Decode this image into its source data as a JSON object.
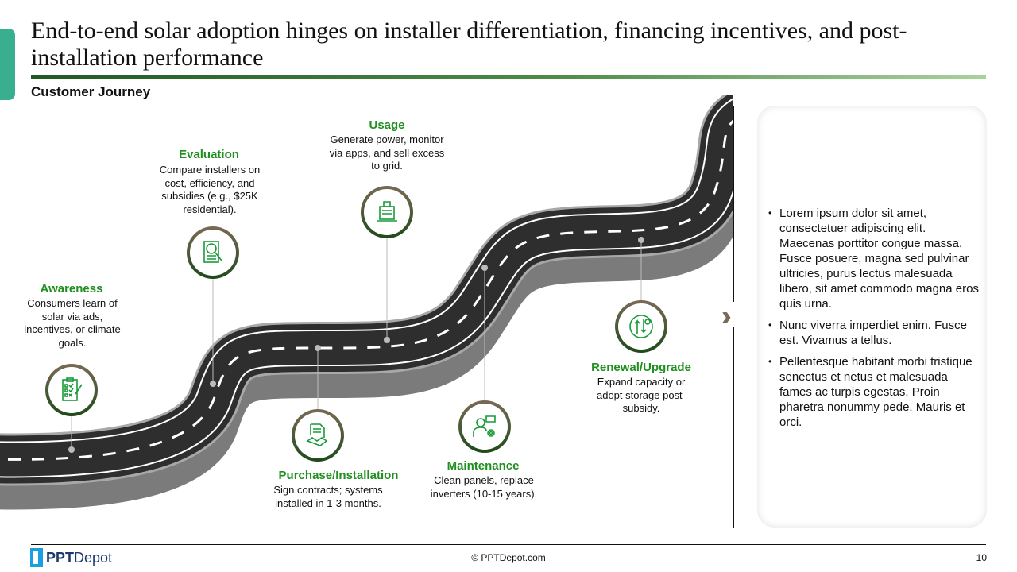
{
  "header": {
    "title": "End-to-end solar adoption hinges on installer differentiation, financing incentives, and post-installation performance",
    "subtitle": "Customer Journey"
  },
  "stages": [
    {
      "title": "Awareness",
      "desc": "Consumers learn of solar via ads, incentives, or climate goals.",
      "icon": "checklist-icon"
    },
    {
      "title": "Evaluation",
      "desc": "Compare installers on cost, efficiency, and subsidies (e.g., $25K residential).",
      "icon": "document-search-icon"
    },
    {
      "title": "Usage",
      "desc": "Generate power, monitor via apps, and sell excess to grid.",
      "icon": "laptop-monitor-icon"
    },
    {
      "title": "Purchase/Installation",
      "desc": "Sign contracts; systems installed in 1-3 months.",
      "icon": "contract-handshake-icon"
    },
    {
      "title": "Maintenance",
      "desc": "Clean panels, replace inverters (10-15 years).",
      "icon": "technician-gear-icon"
    },
    {
      "title": "Renewal/Upgrade",
      "desc": "Expand capacity or adopt storage post-subsidy.",
      "icon": "upgrade-arrows-icon"
    }
  ],
  "panel": {
    "bullets": [
      "Lorem ipsum dolor sit amet, consectetuer adipiscing elit. Maecenas porttitor congue massa. Fusce posuere, magna sed pulvinar ultricies, purus lectus malesuada libero, sit amet commodo magna eros quis urna.",
      "Nunc viverra imperdiet enim. Fusce est. Vivamus a tellus.",
      "Pellentesque habitant morbi tristique senectus et netus et malesuada fames ac turpis egestas. Proin pharetra nonummy pede. Mauris et orci."
    ]
  },
  "colors": {
    "accent": "#3aaf8f",
    "stage_title": "#1f8f1f",
    "chevron": "#7a6a55",
    "road": "#2e2e2e"
  },
  "footer": {
    "logo_bold": "PPT",
    "logo_light": "Depot",
    "copyright": "© PPTDepot.com",
    "page": "10"
  }
}
